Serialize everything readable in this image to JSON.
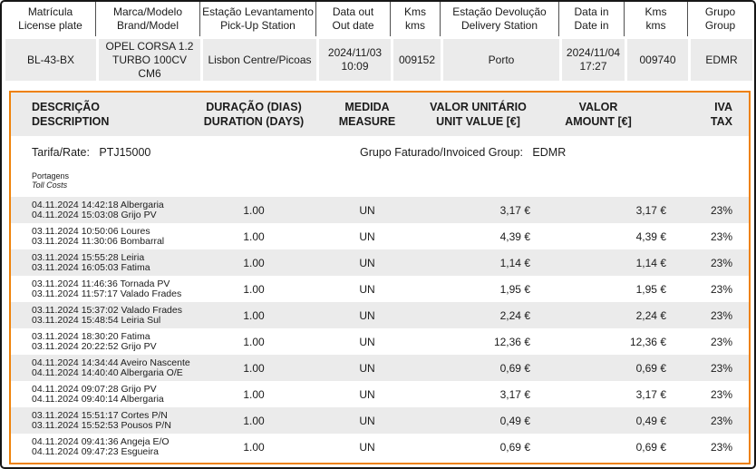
{
  "colors": {
    "accent_orange": "#ee8108",
    "row_alt_gray": "#ebebeb",
    "frame_black": "#161616"
  },
  "vehicle": {
    "columns": [
      {
        "pt": "Matrícula",
        "en": "License plate",
        "value": "BL-43-BX"
      },
      {
        "pt": "Marca/Modelo",
        "en": "Brand/Model",
        "value": "OPEL CORSA 1.2 TURBO 100CV CM6"
      },
      {
        "pt": "Estação Levantamento",
        "en": "Pick-Up Station",
        "value": "Lisbon Centre/Picoas"
      },
      {
        "pt": "Data out",
        "en": "Out date",
        "value": "2024/11/03 10:09"
      },
      {
        "pt": "Kms",
        "en": "kms",
        "value": "009152"
      },
      {
        "pt": "Estação Devolução",
        "en": "Delivery Station",
        "value": "Porto"
      },
      {
        "pt": "Data in",
        "en": "Date in",
        "value": "2024/11/04 17:27"
      },
      {
        "pt": "Kms",
        "en": "kms",
        "value": "009740"
      },
      {
        "pt": "Grupo",
        "en": "Group",
        "value": "EDMR"
      }
    ]
  },
  "invoice": {
    "headers": {
      "desc_pt": "DESCRIÇÃO",
      "desc_en": "DESCRIPTION",
      "dur_pt": "DURAÇÃO (DIAS)",
      "dur_en": "DURATION (DAYS)",
      "med_pt": "MEDIDA",
      "med_en": "MEASURE",
      "unit_pt": "VALOR UNITÁRIO",
      "unit_en": "UNIT VALUE [€]",
      "amt_pt": "VALOR",
      "amt_en": "AMOUNT [€]",
      "tax_pt": "IVA",
      "tax_en": "TAX"
    },
    "tarifa_label": "Tarifa/Rate:",
    "tarifa_value": "PTJ15000",
    "group_label": "Grupo Faturado/Invoiced Group:",
    "group_value": "EDMR",
    "section_pt": "Portagens",
    "section_en": "Toll Costs",
    "rows": [
      {
        "line1": "04.11.2024 14:42:18 Albergaria",
        "line2": "04.11.2024 15:03:08 Grijo PV",
        "duration": "1.00",
        "measure": "UN",
        "unit": "3,17 €",
        "amount": "3,17 €",
        "tax": "23%"
      },
      {
        "line1": "03.11.2024 10:50:06 Loures",
        "line2": "03.11.2024 11:30:06 Bombarral",
        "duration": "1.00",
        "measure": "UN",
        "unit": "4,39 €",
        "amount": "4,39 €",
        "tax": "23%"
      },
      {
        "line1": "03.11.2024 15:55:28 Leiria",
        "line2": "03.11.2024 16:05:03 Fatima",
        "duration": "1.00",
        "measure": "UN",
        "unit": "1,14 €",
        "amount": "1,14 €",
        "tax": "23%"
      },
      {
        "line1": "03.11.2024 11:46:36 Tornada PV",
        "line2": "03.11.2024 11:57:17 Valado Frades",
        "duration": "1.00",
        "measure": "UN",
        "unit": "1,95 €",
        "amount": "1,95 €",
        "tax": "23%"
      },
      {
        "line1": "03.11.2024 15:37:02 Valado Frades",
        "line2": "03.11.2024 15:48:54 Leiria Sul",
        "duration": "1.00",
        "measure": "UN",
        "unit": "2,24 €",
        "amount": "2,24 €",
        "tax": "23%"
      },
      {
        "line1": "03.11.2024 18:30:20 Fatima",
        "line2": "03.11.2024 20:22:52 Grijo PV",
        "duration": "1.00",
        "measure": "UN",
        "unit": "12,36 €",
        "amount": "12,36 €",
        "tax": "23%"
      },
      {
        "line1": "04.11.2024 14:34:44 Aveiro Nascente",
        "line2": "04.11.2024 14:40:40 Albergaria O/E",
        "duration": "1.00",
        "measure": "UN",
        "unit": "0,69 €",
        "amount": "0,69 €",
        "tax": "23%"
      },
      {
        "line1": "04.11.2024 09:07:28 Grijo PV",
        "line2": "04.11.2024 09:40:14 Albergaria",
        "duration": "1.00",
        "measure": "UN",
        "unit": "3,17 €",
        "amount": "3,17 €",
        "tax": "23%"
      },
      {
        "line1": "03.11.2024 15:51:17 Cortes P/N",
        "line2": "03.11.2024 15:52:53 Pousos P/N",
        "duration": "1.00",
        "measure": "UN",
        "unit": "0,49 €",
        "amount": "0,49 €",
        "tax": "23%"
      },
      {
        "line1": "04.11.2024 09:41:36 Angeja E/O",
        "line2": "04.11.2024 09:47:23 Esgueira",
        "duration": "1.00",
        "measure": "UN",
        "unit": "0,69 €",
        "amount": "0,69 €",
        "tax": "23%"
      }
    ]
  }
}
